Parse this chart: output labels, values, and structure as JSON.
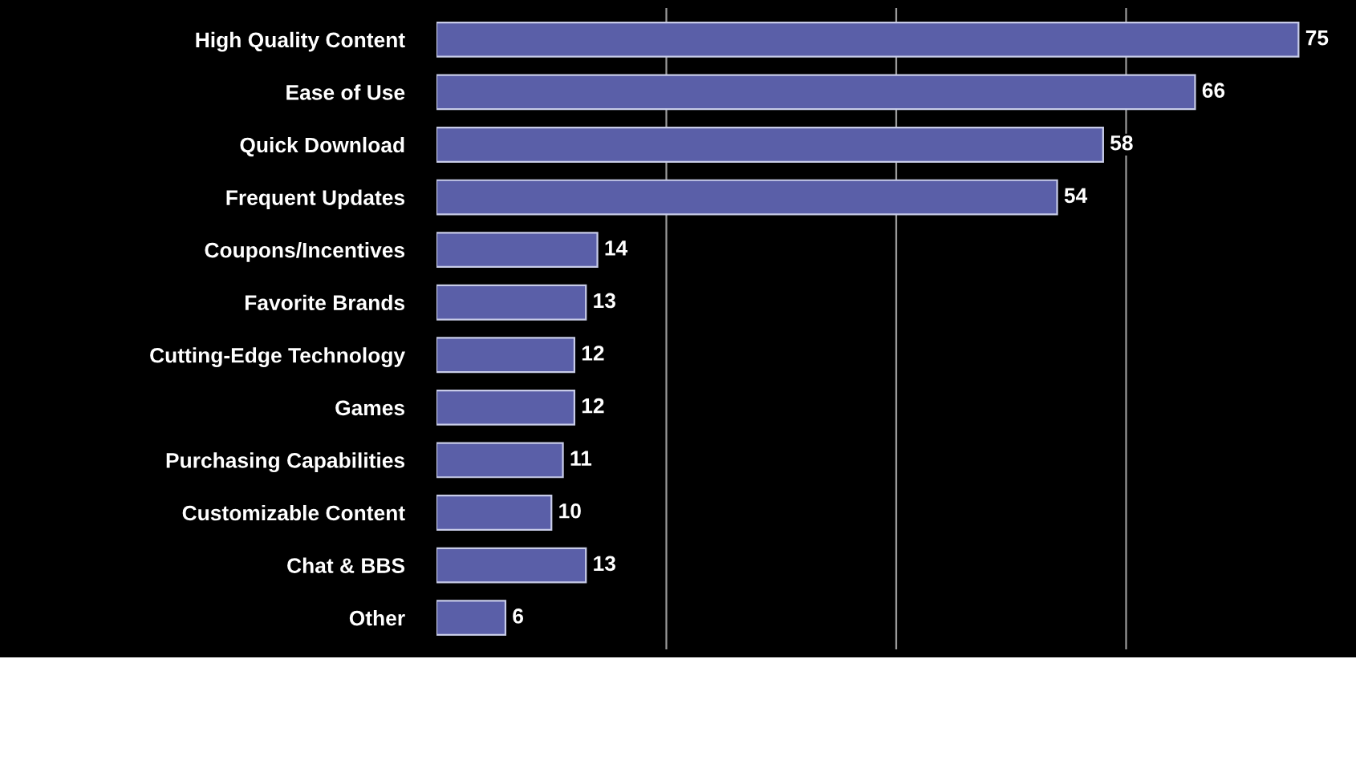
{
  "chart_data": {
    "type": "bar",
    "orientation": "horizontal",
    "categories": [
      "High Quality Content",
      "Ease of Use",
      "Quick Download",
      "Frequent Updates",
      "Coupons/Incentives",
      "Favorite Brands",
      "Cutting-Edge Technology",
      "Games",
      "Purchasing Capabilities",
      "Customizable Content",
      "Chat & BBS",
      "Other"
    ],
    "values": [
      75,
      66,
      58,
      54,
      14,
      13,
      12,
      12,
      11,
      10,
      13,
      6
    ],
    "color": "#5a5fa8",
    "xlim": [
      0,
      80
    ],
    "xticks": [
      {
        "value": 20,
        "label": null
      },
      {
        "value": 40,
        "label": null
      },
      {
        "value": 60,
        "label": null
      }
    ],
    "grid": "x",
    "tick_labels": "y",
    "data_labels": true
  }
}
